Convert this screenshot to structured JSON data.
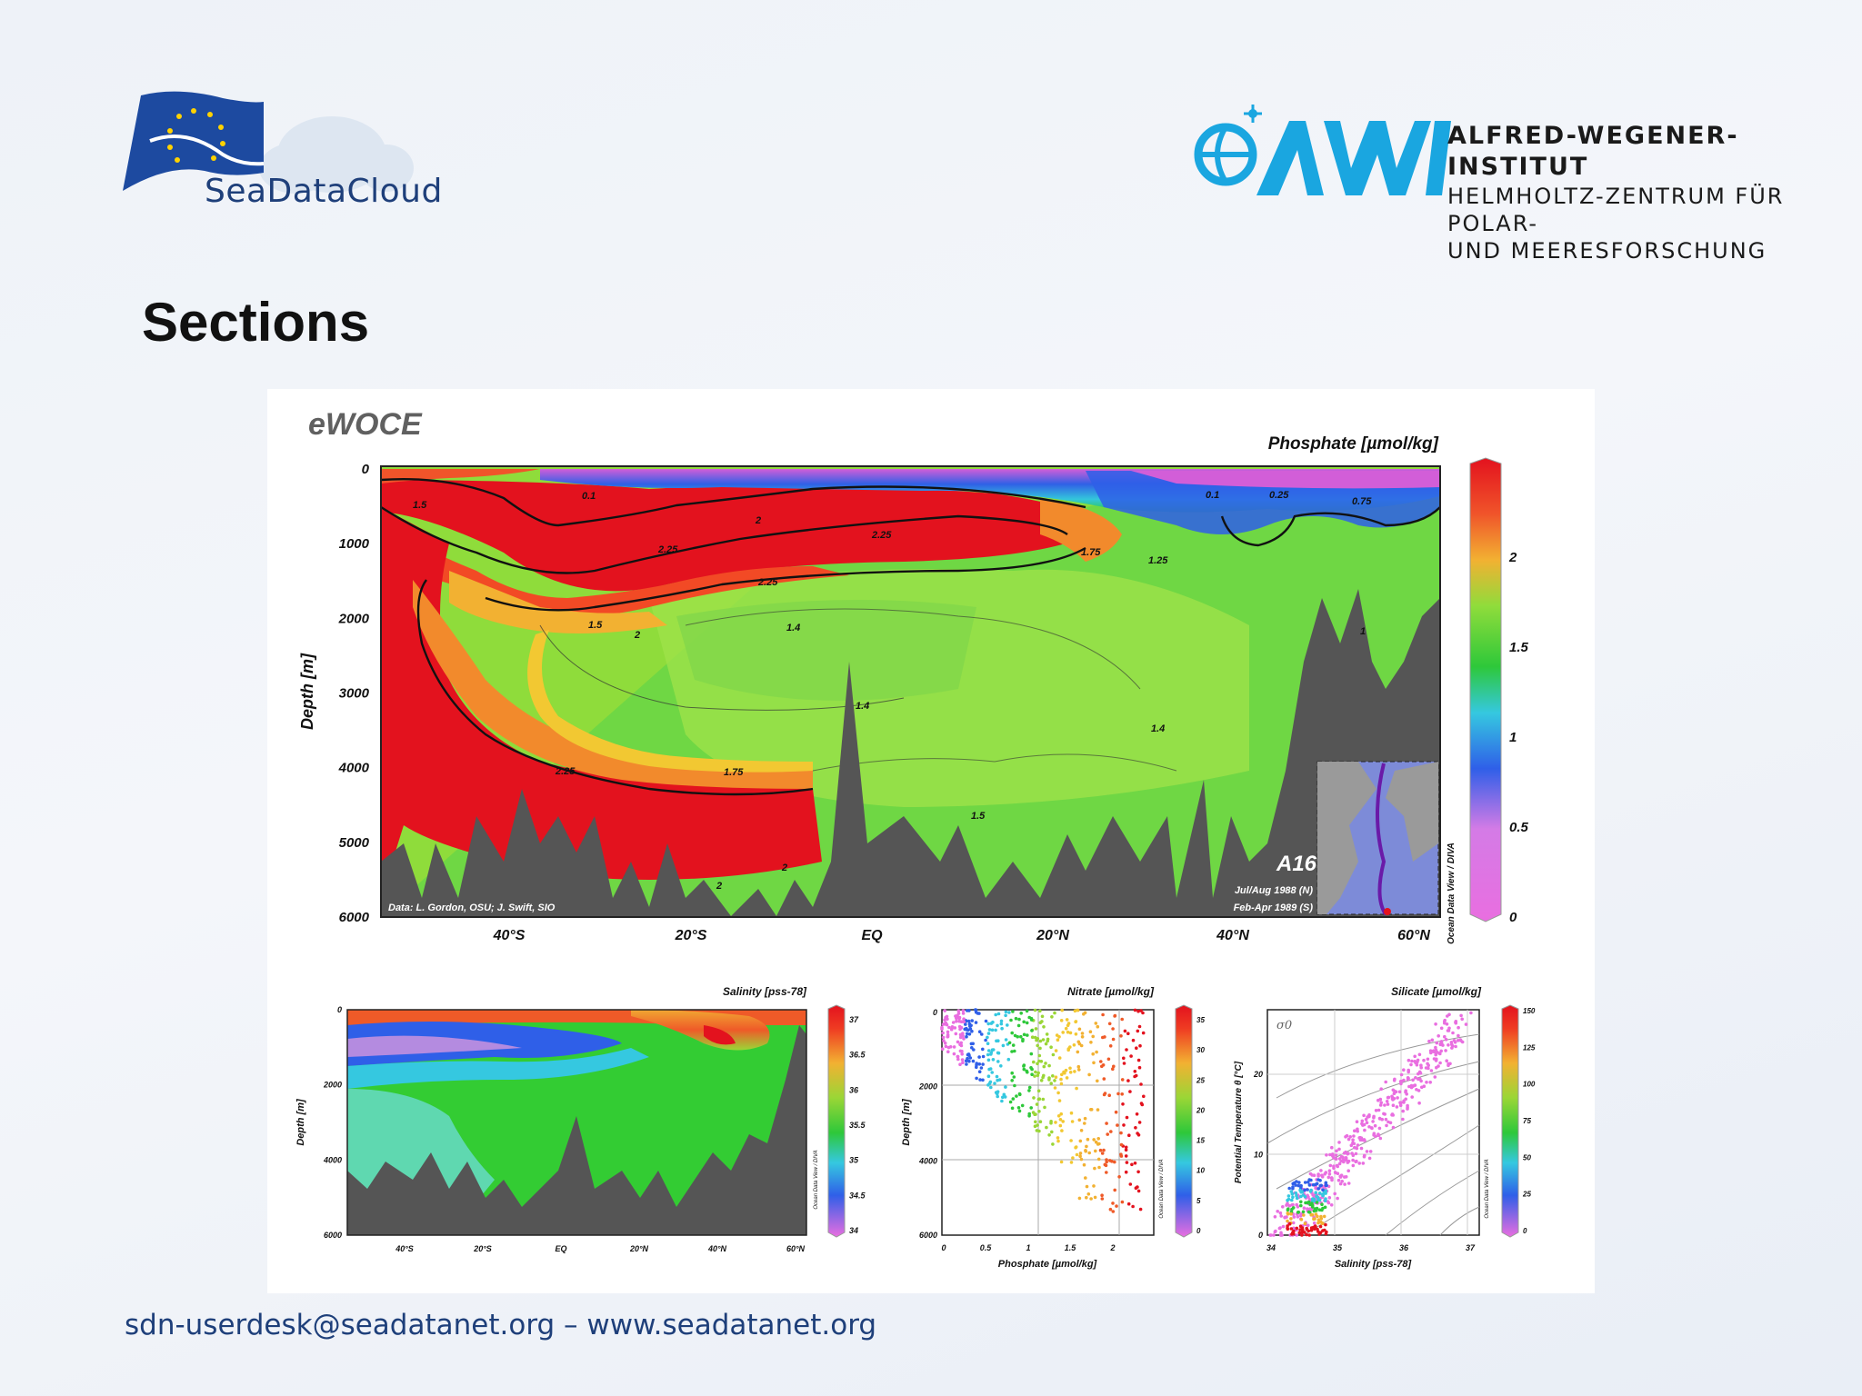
{
  "header": {
    "sdc_logo_text": "SeaDataCloud",
    "awi_name": "ALFRED-WEGENER-INSTITUT",
    "awi_sub1": "HELMHOLTZ-ZENTRUM FÜR POLAR-",
    "awi_sub2": "UND MEERESFORSCHUNG",
    "colors": {
      "eu_blue": "#1d4aa0",
      "awi_cyan": "#1aa6e0",
      "sdc_text": "#1e3f7a"
    }
  },
  "slide": {
    "title": "Sections"
  },
  "figure": {
    "brand": "eWOCE",
    "credit": "Data: L. Gordon, OSU; J. Swift, SIO",
    "section_id": "A16",
    "dates_n": "Jul/Aug 1988 (N)",
    "dates_s": "Feb-Apr 1989 (S)",
    "software": "Ocean Data View / DIVA"
  },
  "chart_data": [
    {
      "type": "heatmap",
      "title": "Phosphate [µmol/kg]",
      "ylabel": "Depth [m]",
      "y_ticks": [
        "0",
        "1000",
        "2000",
        "3000",
        "4000",
        "5000",
        "6000"
      ],
      "x_ticks": [
        "40°S",
        "20°S",
        "EQ",
        "20°N",
        "40°N",
        "60°N"
      ],
      "colorbar_ticks": [
        "0",
        "0.5",
        "1",
        "1.5",
        "2"
      ],
      "contour_labels": [
        "0.1",
        "1.5",
        "2",
        "2.25",
        "1.75",
        "1.25",
        "0.25",
        "0.75",
        "1.4",
        "1"
      ],
      "ylim": [
        0,
        6000
      ],
      "clim": [
        0,
        2.4
      ]
    },
    {
      "type": "heatmap",
      "title": "Salinity [pss-78]",
      "ylabel": "Depth [m]",
      "y_ticks": [
        "0",
        "2000",
        "4000",
        "6000"
      ],
      "x_ticks": [
        "40°S",
        "20°S",
        "EQ",
        "20°N",
        "40°N",
        "60°N"
      ],
      "colorbar_ticks": [
        "34",
        "34.5",
        "35",
        "35.5",
        "36",
        "36.5",
        "37"
      ],
      "ylim": [
        0,
        6000
      ],
      "clim": [
        34,
        37
      ]
    },
    {
      "type": "scatter",
      "title": "Nitrate [µmol/kg]",
      "xlabel": "Phosphate [µmol/kg]",
      "ylabel": "Depth [m]",
      "x_ticks": [
        "0",
        "0.5",
        "1",
        "1.5",
        "2"
      ],
      "y_ticks": [
        "0",
        "2000",
        "4000",
        "6000"
      ],
      "colorbar_ticks": [
        "0",
        "5",
        "10",
        "15",
        "20",
        "25",
        "30",
        "35"
      ],
      "xlim": [
        0,
        2.5
      ],
      "ylim": [
        0,
        6000
      ]
    },
    {
      "type": "scatter",
      "title": "Silicate [µmol/kg]",
      "xlabel": "Salinity [pss-78]",
      "ylabel": "Potential Temperature θ [°C]",
      "x_ticks": [
        "34",
        "35",
        "36",
        "37"
      ],
      "y_ticks": [
        "0",
        "10",
        "20"
      ],
      "colorbar_ticks": [
        "0",
        "25",
        "50",
        "75",
        "100",
        "125",
        "150"
      ],
      "isopycnal_label": "σ0",
      "xlim": [
        34,
        37.2
      ],
      "ylim": [
        0,
        28
      ]
    }
  ],
  "footer": {
    "contact": "sdn-userdesk@seadatanet.org – www.seadatanet.org"
  }
}
